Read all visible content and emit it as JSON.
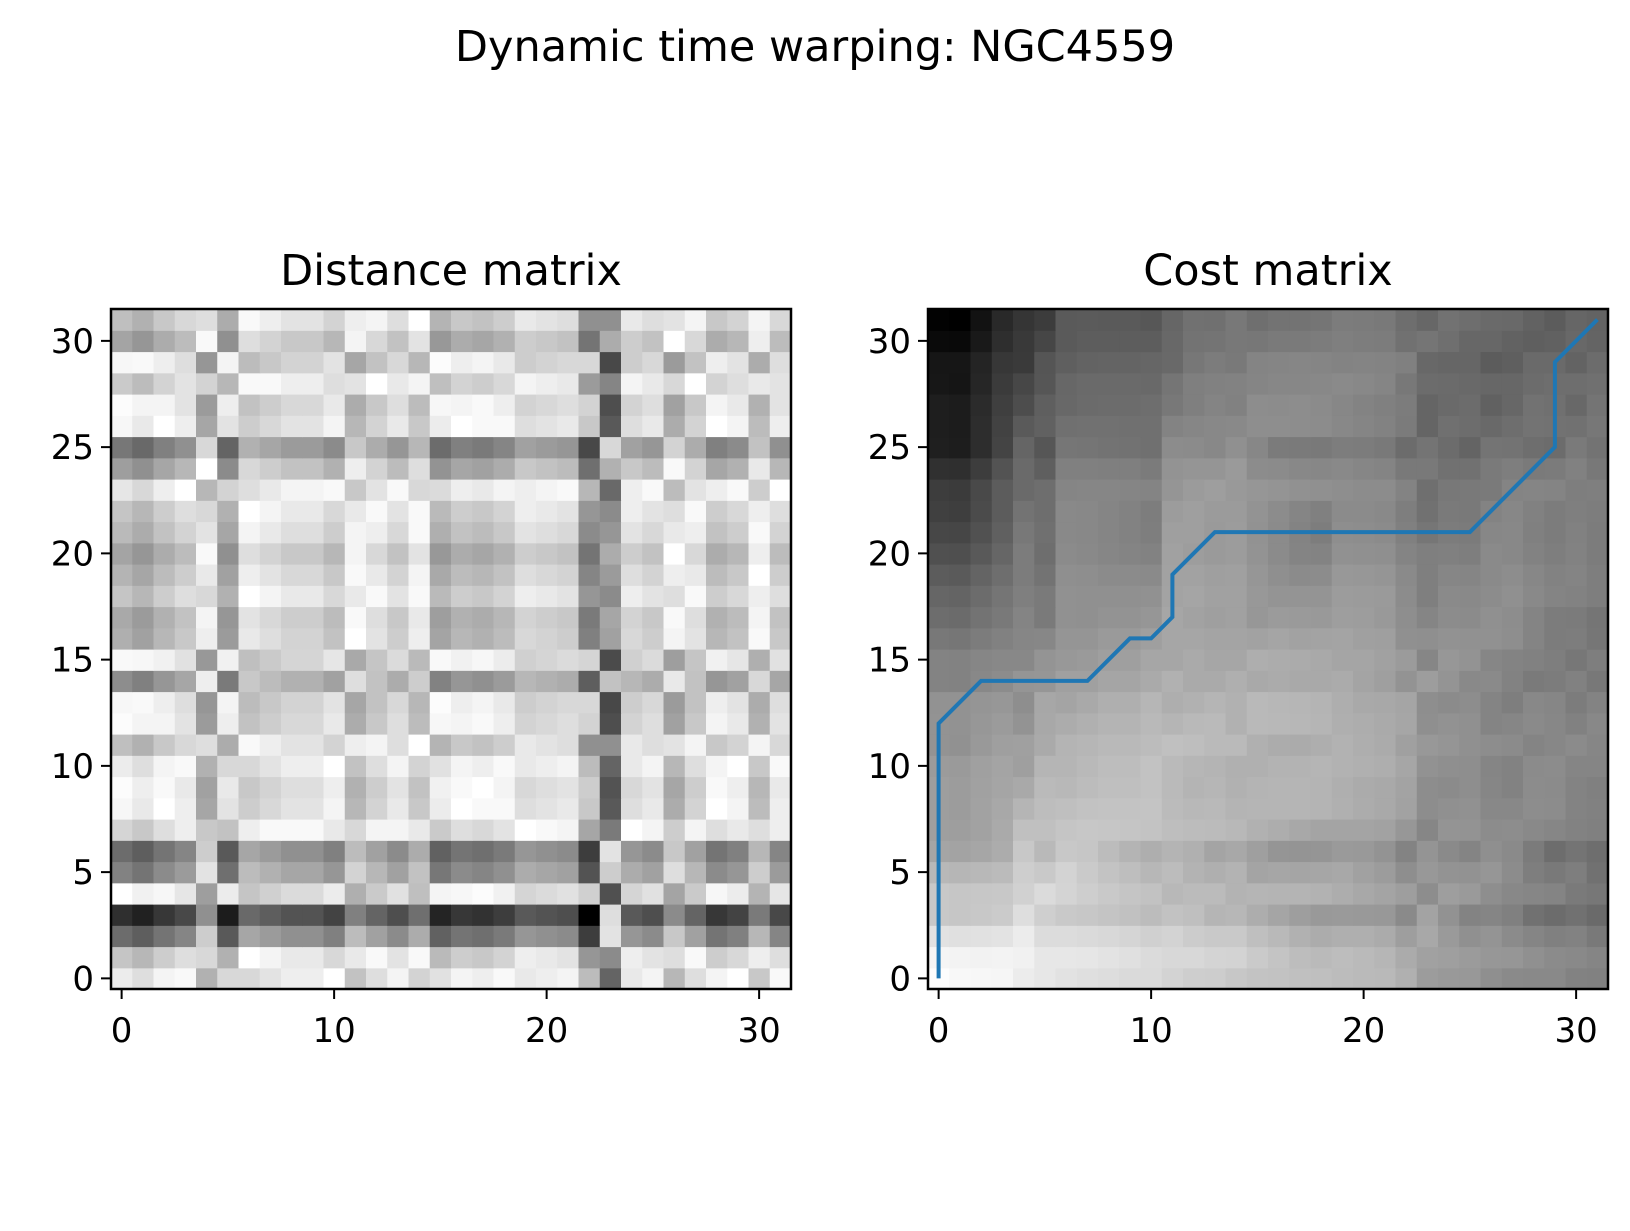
{
  "title": "Dynamic time warping: NGC4559",
  "chart_data": [
    {
      "type": "heatmap",
      "title": "Distance matrix",
      "colormap": "gray (low = black, high = white)",
      "grid_size": 32,
      "xlim": [
        -0.5,
        31.5
      ],
      "ylim": [
        -0.5,
        31.5
      ],
      "xticks": [
        0,
        10,
        20,
        30
      ],
      "yticks": [
        0,
        5,
        10,
        15,
        20,
        25,
        30
      ],
      "row_profile": [
        0.86,
        0.72,
        0.4,
        0.18,
        0.93,
        0.48,
        0.4,
        0.78,
        0.9,
        0.92,
        0.86,
        0.7,
        0.94,
        0.96,
        0.52,
        0.95,
        0.64,
        0.62,
        0.72,
        0.66,
        0.6,
        0.68,
        0.72,
        0.84,
        0.58,
        0.44,
        0.9,
        0.94,
        0.74,
        0.96,
        0.6,
        0.7
      ],
      "col_profile": [
        0.93,
        0.98,
        0.9,
        0.84,
        0.58,
        1.0,
        0.72,
        0.76,
        0.8,
        0.8,
        0.86,
        0.64,
        0.74,
        0.82,
        0.7,
        0.97,
        0.9,
        0.92,
        0.88,
        0.78,
        0.8,
        0.82,
        1.1,
        0.3,
        0.78,
        0.82,
        0.6,
        0.74,
        0.9,
        0.86,
        0.66,
        0.84
      ]
    },
    {
      "type": "heatmap",
      "title": "Cost matrix",
      "colormap": "gray (low = black, high = white)",
      "grid_size": 32,
      "xlim": [
        -0.5,
        31.5
      ],
      "ylim": [
        -0.5,
        31.5
      ],
      "xticks": [
        0,
        10,
        20,
        30
      ],
      "yticks": [
        0,
        5,
        10,
        15,
        20,
        25,
        30
      ],
      "warping_path": {
        "color": "#1f77b4",
        "points": [
          [
            0,
            0
          ],
          [
            0,
            12
          ],
          [
            2,
            14
          ],
          [
            7,
            14
          ],
          [
            9,
            16
          ],
          [
            10,
            16
          ],
          [
            11,
            17
          ],
          [
            11,
            19
          ],
          [
            13,
            21
          ],
          [
            25,
            21
          ],
          [
            29,
            25
          ],
          [
            29,
            29
          ],
          [
            31,
            31
          ]
        ]
      }
    }
  ]
}
